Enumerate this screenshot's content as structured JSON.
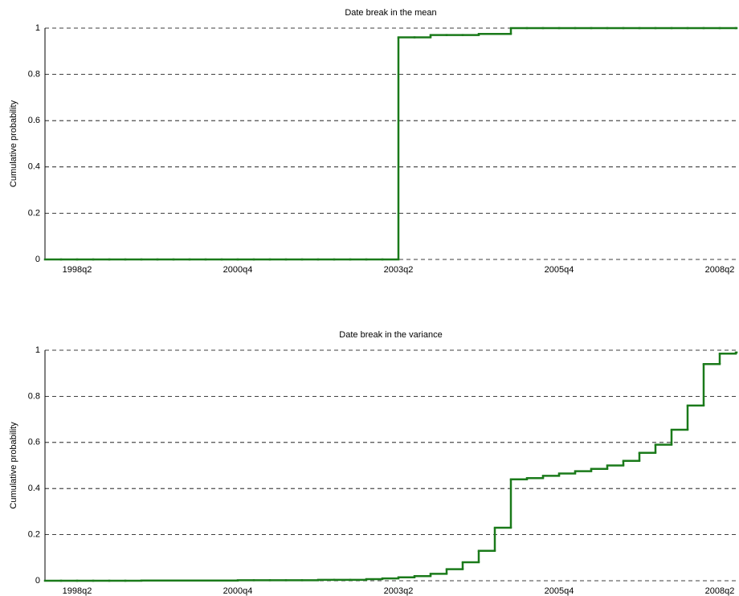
{
  "chart_data": [
    {
      "type": "step",
      "title": "Date break in the mean",
      "ylabel": "Cumulative probability",
      "categories": [
        null,
        null,
        "1998q2",
        null,
        null,
        null,
        null,
        null,
        null,
        null,
        null,
        null,
        "2000q4",
        null,
        null,
        null,
        null,
        null,
        null,
        null,
        null,
        null,
        "2003q2",
        null,
        null,
        null,
        null,
        null,
        null,
        null,
        null,
        null,
        "2005q4",
        null,
        null,
        null,
        null,
        null,
        null,
        null,
        null,
        null,
        "2008q2",
        null
      ],
      "values": [
        0,
        0,
        0,
        0,
        0,
        0,
        0,
        0,
        0,
        0,
        0,
        0,
        0,
        0,
        0,
        0,
        0,
        0,
        0,
        0,
        0,
        0,
        0.96,
        0.96,
        0.97,
        0.97,
        0.97,
        0.975,
        0.975,
        1,
        1,
        1,
        1,
        1,
        1,
        1,
        1,
        1,
        1,
        1,
        1,
        1,
        1,
        1
      ],
      "color": "#1a7a1a",
      "ylim": [
        0,
        1
      ],
      "yticks": [
        0,
        0.2,
        0.4,
        0.6,
        0.8,
        1
      ],
      "grid": true
    },
    {
      "type": "step",
      "title": "Date break in the variance",
      "ylabel": "Cumulative probability",
      "categories": [
        null,
        null,
        "1998q2",
        null,
        null,
        null,
        null,
        null,
        null,
        null,
        null,
        null,
        "2000q4",
        null,
        null,
        null,
        null,
        null,
        null,
        null,
        null,
        null,
        "2003q2",
        null,
        null,
        null,
        null,
        null,
        null,
        null,
        null,
        null,
        "2005q4",
        null,
        null,
        null,
        null,
        null,
        null,
        null,
        null,
        null,
        "2008q2",
        null
      ],
      "values": [
        0,
        0,
        0,
        0,
        0,
        0,
        0.001,
        0.001,
        0.001,
        0.001,
        0.001,
        0.001,
        0.002,
        0.002,
        0.002,
        0.002,
        0.002,
        0.004,
        0.004,
        0.004,
        0.007,
        0.01,
        0.015,
        0.02,
        0.03,
        0.05,
        0.08,
        0.13,
        0.23,
        0.44,
        0.445,
        0.455,
        0.465,
        0.475,
        0.485,
        0.5,
        0.52,
        0.555,
        0.59,
        0.655,
        0.76,
        0.94,
        0.985,
        0.99
      ],
      "color": "#1a7a1a",
      "ylim": [
        0,
        1
      ],
      "yticks": [
        0,
        0.2,
        0.4,
        0.6,
        0.8,
        1
      ],
      "grid": true
    }
  ]
}
